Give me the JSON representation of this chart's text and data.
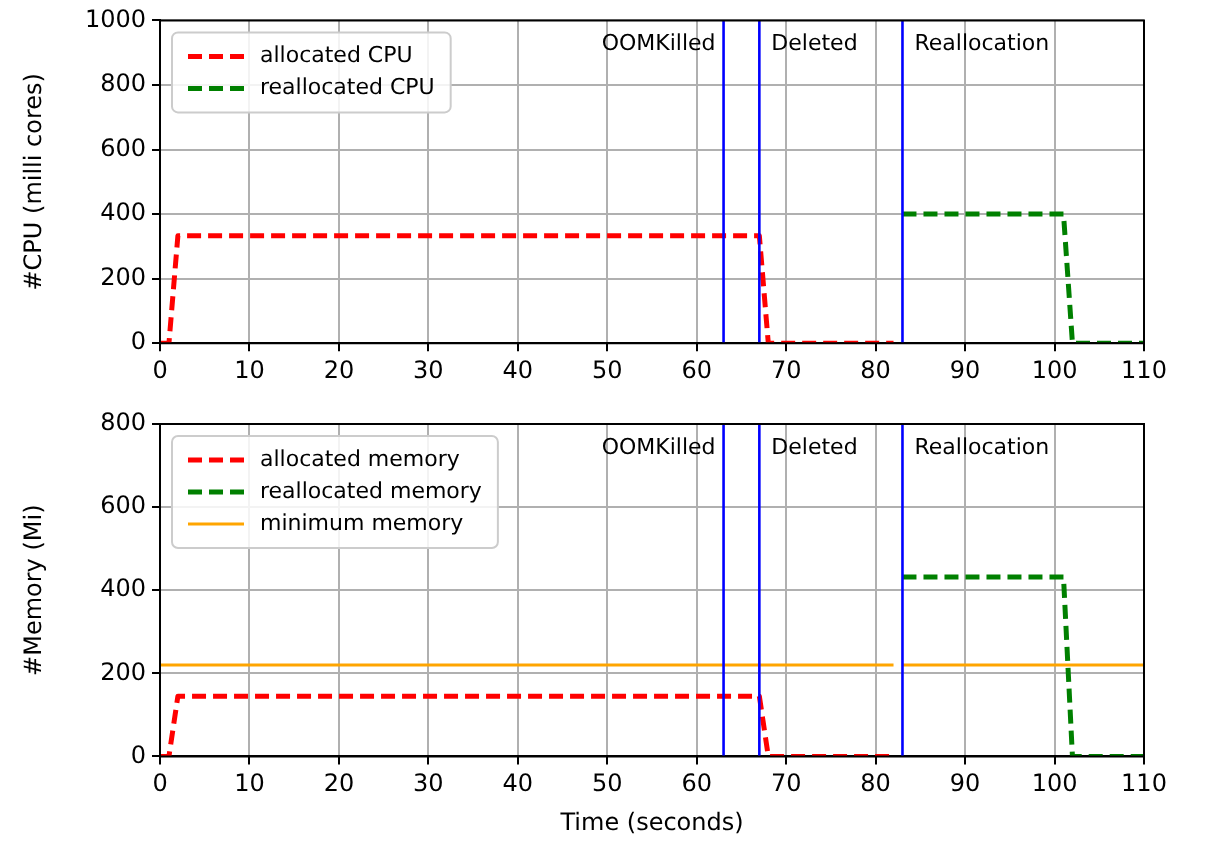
{
  "chart_data": [
    {
      "type": "line",
      "ylabel": "#CPU (milli cores)",
      "xlim": [
        0,
        110
      ],
      "xticks": [
        0,
        10,
        20,
        30,
        40,
        50,
        60,
        70,
        80,
        90,
        100,
        110
      ],
      "ylim": [
        0,
        1000
      ],
      "yticks": [
        0,
        200,
        400,
        600,
        800,
        1000
      ],
      "grid": true,
      "legend": "top left",
      "marker": "none",
      "series": [
        {
          "name": "allocated CPU",
          "color": "#ff0000",
          "line_style": "dashed",
          "x": [
            0,
            1,
            2,
            67,
            68,
            82
          ],
          "values": [
            0,
            0,
            333,
            333,
            0,
            0
          ]
        },
        {
          "name": "reallocated CPU",
          "color": "#008000",
          "line_style": "dashed",
          "x": [
            83,
            101,
            102,
            110
          ],
          "values": [
            400,
            400,
            0,
            0
          ]
        }
      ],
      "ref_lines": [
        {
          "axis": "x",
          "value": 63,
          "label": "OOMKilled",
          "color": "#0000ff",
          "line_style": "solid"
        },
        {
          "axis": "x",
          "value": 67,
          "label": "Deleted",
          "color": "#0000ff",
          "line_style": "solid"
        },
        {
          "axis": "x",
          "value": 83,
          "label": "Reallocation",
          "color": "#0000ff",
          "line_style": "solid"
        }
      ]
    },
    {
      "type": "line",
      "xlabel": "Time (seconds)",
      "ylabel": "#Memory (Mi)",
      "xlim": [
        0,
        110
      ],
      "xticks": [
        0,
        10,
        20,
        30,
        40,
        50,
        60,
        70,
        80,
        90,
        100,
        110
      ],
      "ylim": [
        0,
        800
      ],
      "yticks": [
        0,
        200,
        400,
        600,
        800
      ],
      "grid": true,
      "legend": "top left",
      "marker": "none",
      "series": [
        {
          "name": "allocated memory",
          "color": "#ff0000",
          "line_style": "dashed",
          "x": [
            0,
            1,
            2,
            67,
            68,
            82
          ],
          "values": [
            0,
            0,
            145,
            145,
            0,
            0
          ]
        },
        {
          "name": "reallocated memory",
          "color": "#008000",
          "line_style": "dashed",
          "x": [
            83,
            101,
            102,
            110
          ],
          "values": [
            432,
            432,
            0,
            0
          ]
        },
        {
          "name": "minimum memory",
          "color": "#ffa500",
          "line_style": "solid",
          "x": [
            0,
            82,
            82.5,
            83,
            110
          ],
          "values": [
            220,
            220,
            null,
            220,
            220
          ]
        }
      ],
      "ref_lines": [
        {
          "axis": "x",
          "value": 63,
          "label": "OOMKilled",
          "color": "#0000ff",
          "line_style": "solid"
        },
        {
          "axis": "x",
          "value": 67,
          "label": "Deleted",
          "color": "#0000ff",
          "line_style": "solid"
        },
        {
          "axis": "x",
          "value": 83,
          "label": "Reallocation",
          "color": "#0000ff",
          "line_style": "solid"
        }
      ]
    }
  ]
}
